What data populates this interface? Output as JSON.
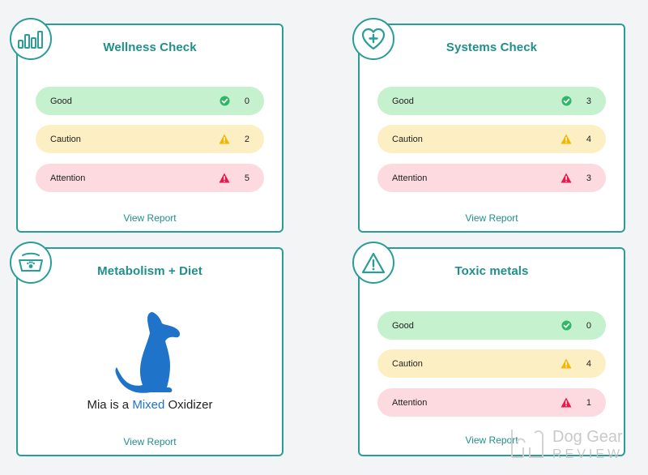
{
  "colors": {
    "accent": "#2a9d97",
    "title": "#1f8f89",
    "good_bg": "#c6f1cf",
    "caution_bg": "#fdefc4",
    "attention_bg": "#fddadf",
    "good_icon": "#2fb866",
    "caution_icon": "#f2b705",
    "attention_icon": "#e5194a",
    "highlight": "#1f73c9"
  },
  "cards": {
    "wellness": {
      "icon": "bar-chart-icon",
      "title": "Wellness Check",
      "rows": [
        {
          "label": "Good",
          "count": "0"
        },
        {
          "label": "Caution",
          "count": "2"
        },
        {
          "label": "Attention",
          "count": "5"
        }
      ],
      "link": "View Report"
    },
    "systems": {
      "icon": "heart-plus-icon",
      "title": "Systems Check",
      "rows": [
        {
          "label": "Good",
          "count": "3"
        },
        {
          "label": "Caution",
          "count": "4"
        },
        {
          "label": "Attention",
          "count": "3"
        }
      ],
      "link": "View Report"
    },
    "metabolism": {
      "icon": "pet-bowl-icon",
      "title": "Metabolism + Diet",
      "text_before": "Mia is a ",
      "text_highlight": "Mixed",
      "text_after": " Oxidizer",
      "link": "View Report"
    },
    "toxic": {
      "icon": "warning-triangle-icon",
      "title": "Toxic metals",
      "rows": [
        {
          "label": "Good",
          "count": "0"
        },
        {
          "label": "Caution",
          "count": "4"
        },
        {
          "label": "Attention",
          "count": "1"
        }
      ],
      "link": "View Report"
    }
  },
  "watermark": {
    "line1": "Dog Gear",
    "line2": "REVIEW"
  }
}
